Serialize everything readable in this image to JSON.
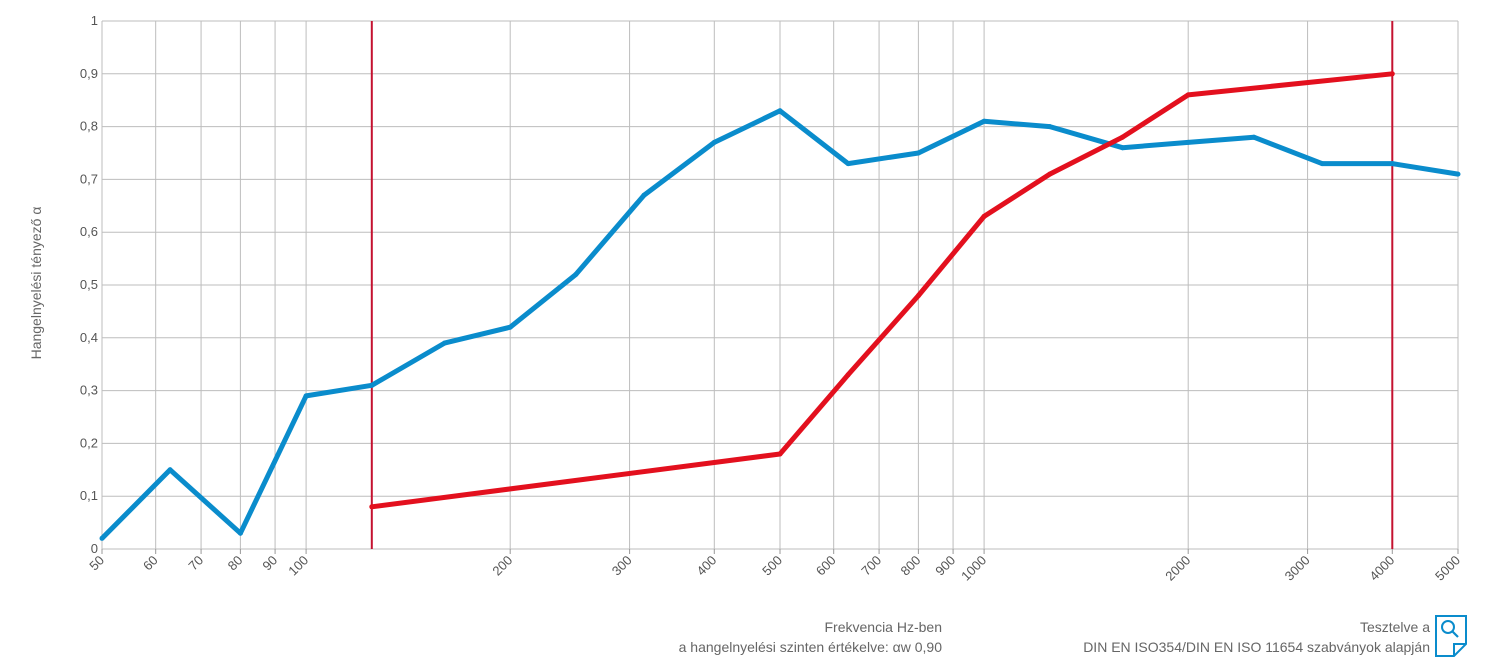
{
  "chart_data": {
    "type": "line",
    "ylabel": "Hangelnyelési tényező α",
    "xlabel": "Frekvencia Hz-ben",
    "xscale": "log",
    "xlim": [
      50,
      5000
    ],
    "ylim": [
      0,
      1
    ],
    "grid": true,
    "y_ticks": [
      {
        "value": 0,
        "label": "0"
      },
      {
        "value": 0.1,
        "label": "0,1"
      },
      {
        "value": 0.2,
        "label": "0,2"
      },
      {
        "value": 0.3,
        "label": "0,3"
      },
      {
        "value": 0.4,
        "label": "0,4"
      },
      {
        "value": 0.5,
        "label": "0,5"
      },
      {
        "value": 0.6,
        "label": "0,6"
      },
      {
        "value": 0.7,
        "label": "0,7"
      },
      {
        "value": 0.8,
        "label": "0,8"
      },
      {
        "value": 0.9,
        "label": "0,9"
      },
      {
        "value": 1,
        "label": "1"
      }
    ],
    "x_tick_labels": [
      {
        "value": 50,
        "label": "50"
      },
      {
        "value": 60,
        "label": "60"
      },
      {
        "value": 70,
        "label": "70"
      },
      {
        "value": 80,
        "label": "80"
      },
      {
        "value": 90,
        "label": "90"
      },
      {
        "value": 100,
        "label": "100"
      },
      {
        "value": 200,
        "label": "200"
      },
      {
        "value": 300,
        "label": "300"
      },
      {
        "value": 400,
        "label": "400"
      },
      {
        "value": 500,
        "label": "500"
      },
      {
        "value": 600,
        "label": "600"
      },
      {
        "value": 700,
        "label": "700"
      },
      {
        "value": 800,
        "label": "800"
      },
      {
        "value": 900,
        "label": "900"
      },
      {
        "value": 1000,
        "label": "1000"
      },
      {
        "value": 2000,
        "label": "2000"
      },
      {
        "value": 3000,
        "label": "3000"
      },
      {
        "value": 4000,
        "label": "4000"
      },
      {
        "value": 5000,
        "label": "5000"
      }
    ],
    "x_gridlines": [
      50,
      60,
      70,
      80,
      90,
      100,
      200,
      300,
      400,
      500,
      600,
      700,
      800,
      900,
      1000,
      2000,
      3000,
      4000,
      5000
    ],
    "series": [
      {
        "color": "#0a8ccc",
        "x": [
          50,
          63,
          80,
          100,
          125,
          160,
          200,
          250,
          315,
          400,
          500,
          630,
          800,
          1000,
          1250,
          1600,
          2000,
          2500,
          3150,
          4000,
          5000
        ],
        "y": [
          0.02,
          0.15,
          0.03,
          0.29,
          0.31,
          0.39,
          0.42,
          0.52,
          0.67,
          0.77,
          0.83,
          0.73,
          0.75,
          0.81,
          0.8,
          0.76,
          0.77,
          0.78,
          0.73,
          0.73,
          0.71
        ]
      },
      {
        "color": "#e3101e",
        "x": [
          125,
          500,
          630,
          800,
          1000,
          1250,
          1600,
          2000,
          4000
        ],
        "y": [
          0.08,
          0.18,
          0.33,
          0.48,
          0.63,
          0.71,
          0.78,
          0.86,
          0.9
        ]
      }
    ],
    "vertical_markers": [
      {
        "x": 125,
        "color": "#c41230"
      },
      {
        "x": 4000,
        "color": "#c41230"
      }
    ]
  },
  "footer": {
    "freq_line1": "Frekvencia Hz-ben",
    "freq_line2": "a hangelnyelési szinten értékelve: αw 0,90",
    "test_line1": "Tesztelve a",
    "test_line2": "DIN EN ISO354/DIN EN ISO 11654 szabványok alapján"
  },
  "icons": {
    "document": "document-search-icon",
    "accent": "#0a8ccc"
  }
}
